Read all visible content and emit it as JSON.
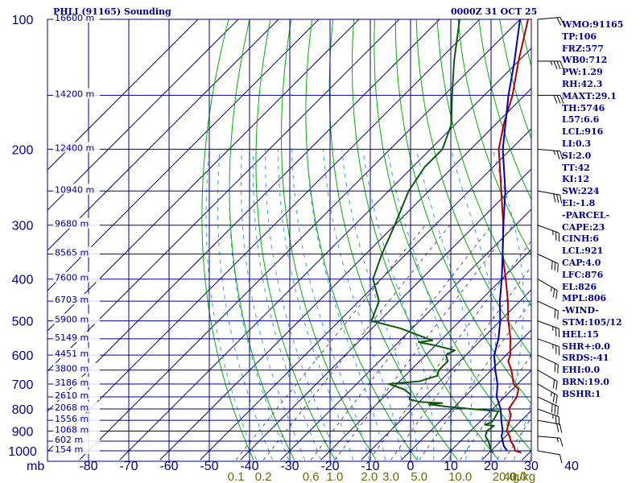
{
  "header": {
    "station_title": "PHLI (91165) Sounding",
    "valid_time": "0000Z 31 OCT 25"
  },
  "colors": {
    "frame": "#00008b",
    "temperature": "#b00000",
    "dewpoint": "#0a5a0a",
    "parcel": "#0000b0",
    "dry_adiabat": "#00b000",
    "moist_adiabat": "#3399ff",
    "mixing_ratio": "#555555",
    "mixing_ratio_label": "#6b6b00"
  },
  "chart_data": {
    "type": "line",
    "subtype": "skew-t log-p sounding",
    "title": "PHLI (91165) Sounding",
    "xlabel": "",
    "ylabel": "mb",
    "x_unit": "°C",
    "x_ticks": [
      -80,
      -70,
      -60,
      -50,
      -40,
      -30,
      -20,
      -10,
      0,
      10,
      20,
      30,
      40
    ],
    "pressure_ticks": [
      100,
      200,
      300,
      400,
      500,
      600,
      700,
      800,
      900,
      1000
    ],
    "pressure_range": [
      100,
      1050
    ],
    "y_scale": "log",
    "height_labels": [
      {
        "p": 100,
        "label": "16600 m"
      },
      {
        "p": 150,
        "label": "14200 m"
      },
      {
        "p": 200,
        "label": "12400 m"
      },
      {
        "p": 250,
        "label": "10940 m"
      },
      {
        "p": 300,
        "label": "9680 m"
      },
      {
        "p": 350,
        "label": "8565 m"
      },
      {
        "p": 400,
        "label": "7600 m"
      },
      {
        "p": 450,
        "label": "6703 m"
      },
      {
        "p": 500,
        "label": "5900 m"
      },
      {
        "p": 550,
        "label": "5149 m"
      },
      {
        "p": 600,
        "label": "4451 m"
      },
      {
        "p": 650,
        "label": "3800 m"
      },
      {
        "p": 700,
        "label": "3186 m"
      },
      {
        "p": 750,
        "label": "2610 m"
      },
      {
        "p": 800,
        "label": "2068 m"
      },
      {
        "p": 850,
        "label": "1556 m"
      },
      {
        "p": 900,
        "label": "1068 m"
      },
      {
        "p": 950,
        "label": "602 m"
      },
      {
        "p": 1000,
        "label": "154 m"
      }
    ],
    "mixing_ratio_labels": [
      "0.1",
      "0.2",
      "0.6",
      "1.0",
      "2.0",
      "3.0",
      "5.0",
      "10.0",
      "20.0",
      "40.0"
    ],
    "mixing_ratio_values": [
      0.1,
      0.2,
      0.6,
      1.0,
      2.0,
      3.0,
      5.0,
      10.0,
      20.0,
      40.0
    ],
    "mixing_ratio_unit": "g/kg",
    "series": [
      {
        "key": "temperature",
        "points": [
          [
            1010,
            28.0
          ],
          [
            1000,
            26.0
          ],
          [
            975,
            24.5
          ],
          [
            950,
            22.5
          ],
          [
            925,
            21.0
          ],
          [
            900,
            19.0
          ],
          [
            875,
            18.0
          ],
          [
            850,
            17.0
          ],
          [
            825,
            16.0
          ],
          [
            800,
            14.0
          ],
          [
            750,
            13.0
          ],
          [
            720,
            11.5
          ],
          [
            700,
            9.0
          ],
          [
            650,
            5.0
          ],
          [
            620,
            2.0
          ],
          [
            600,
            1.0
          ],
          [
            575,
            -1.0
          ],
          [
            550,
            -3.0
          ],
          [
            500,
            -8.0
          ],
          [
            450,
            -13.0
          ],
          [
            400,
            -19.0
          ],
          [
            350,
            -26.0
          ],
          [
            300,
            -33.0
          ],
          [
            250,
            -42.0
          ],
          [
            200,
            -53.0
          ],
          [
            175,
            -58.0
          ],
          [
            150,
            -63.0
          ],
          [
            125,
            -70.0
          ],
          [
            100,
            -78.0
          ]
        ]
      },
      {
        "key": "dewpoint",
        "points": [
          [
            1010,
            21.0
          ],
          [
            1000,
            20.0
          ],
          [
            975,
            18.5
          ],
          [
            950,
            17.0
          ],
          [
            925,
            15.0
          ],
          [
            900,
            14.0
          ],
          [
            875,
            14.5
          ],
          [
            870,
            12.0
          ],
          [
            860,
            13.0
          ],
          [
            850,
            13.0
          ],
          [
            810,
            12.0
          ],
          [
            800,
            5.0
          ],
          [
            790,
            -2.0
          ],
          [
            780,
            -7.0
          ],
          [
            775,
            -4.0
          ],
          [
            770,
            -10.0
          ],
          [
            760,
            -13.0
          ],
          [
            740,
            -14.0
          ],
          [
            720,
            -17.0
          ],
          [
            700,
            -22.0
          ],
          [
            690,
            -15.0
          ],
          [
            670,
            -12.0
          ],
          [
            650,
            -13.0
          ],
          [
            620,
            -13.0
          ],
          [
            600,
            -15.0
          ],
          [
            585,
            -14.0
          ],
          [
            570,
            -20.0
          ],
          [
            560,
            -25.0
          ],
          [
            555,
            -22.0
          ],
          [
            520,
            -33.0
          ],
          [
            500,
            -42.0
          ],
          [
            450,
            -45.0
          ],
          [
            400,
            -52.0
          ],
          [
            350,
            -56.0
          ],
          [
            300,
            -60.0
          ],
          [
            250,
            -65.0
          ],
          [
            220,
            -67.0
          ],
          [
            200,
            -67.0
          ],
          [
            175,
            -71.0
          ],
          [
            150,
            -78.0
          ],
          [
            125,
            -86.0
          ],
          [
            100,
            -95.0
          ]
        ]
      },
      {
        "key": "parcel",
        "points": [
          [
            1000,
            24.0
          ],
          [
            975,
            22.0
          ],
          [
            950,
            20.5
          ],
          [
            925,
            19.0
          ],
          [
            900,
            18.0
          ],
          [
            875,
            16.5
          ],
          [
            850,
            15.0
          ],
          [
            800,
            12.0
          ],
          [
            750,
            8.0
          ],
          [
            700,
            5.0
          ],
          [
            650,
            1.0
          ],
          [
            600,
            -3.0
          ],
          [
            550,
            -6.0
          ],
          [
            500,
            -10.0
          ],
          [
            450,
            -15.0
          ],
          [
            400,
            -20.0
          ],
          [
            350,
            -26.0
          ],
          [
            300,
            -33.0
          ],
          [
            250,
            -41.0
          ],
          [
            200,
            -52.0
          ],
          [
            150,
            -64.0
          ],
          [
            125,
            -71.0
          ],
          [
            100,
            -80.0
          ]
        ]
      }
    ],
    "wind_barbs": [
      {
        "p": 1000,
        "dir": 100,
        "spd": 10
      },
      {
        "p": 925,
        "dir": 95,
        "spd": 15
      },
      {
        "p": 850,
        "dir": 100,
        "spd": 20
      },
      {
        "p": 800,
        "dir": 110,
        "spd": 25
      },
      {
        "p": 750,
        "dir": 115,
        "spd": 30
      },
      {
        "p": 700,
        "dir": 120,
        "spd": 25
      },
      {
        "p": 650,
        "dir": 120,
        "spd": 20
      },
      {
        "p": 600,
        "dir": 115,
        "spd": 20
      },
      {
        "p": 550,
        "dir": 110,
        "spd": 25
      },
      {
        "p": 500,
        "dir": 110,
        "spd": 25
      },
      {
        "p": 450,
        "dir": 115,
        "spd": 20
      },
      {
        "p": 400,
        "dir": 120,
        "spd": 25
      },
      {
        "p": 350,
        "dir": 115,
        "spd": 30
      },
      {
        "p": 300,
        "dir": 110,
        "spd": 25
      },
      {
        "p": 250,
        "dir": 100,
        "spd": 30
      },
      {
        "p": 200,
        "dir": 95,
        "spd": 25
      },
      {
        "p": 150,
        "dir": 90,
        "spd": 30
      },
      {
        "p": 125,
        "dir": 90,
        "spd": 35
      },
      {
        "p": 100,
        "dir": 85,
        "spd": 20
      }
    ]
  },
  "stats": [
    "WMO:91165",
    "TP:106",
    "FRZ:577",
    "WB0:712",
    "PW:1.29",
    "RH:42.3",
    "MAXT:29.1",
    "TH:5746",
    "L57:6.6",
    "LCL:916",
    "LI:0.3",
    "SI:2.0",
    "TT:42",
    "KI:12",
    "SW:224",
    "EI:-1.8",
    "-PARCEL-",
    "CAPE:23",
    "CINH:6",
    "LCL:921",
    "CAP:4.0",
    "LFC:876",
    "EL:826",
    "MPL:806",
    "-WIND-",
    "STM:105/12",
    "HEL:15",
    "SHR+:0.0",
    "SRDS:-41",
    "EHI:0.0",
    "BRN:19.0",
    "BSHR:1"
  ]
}
